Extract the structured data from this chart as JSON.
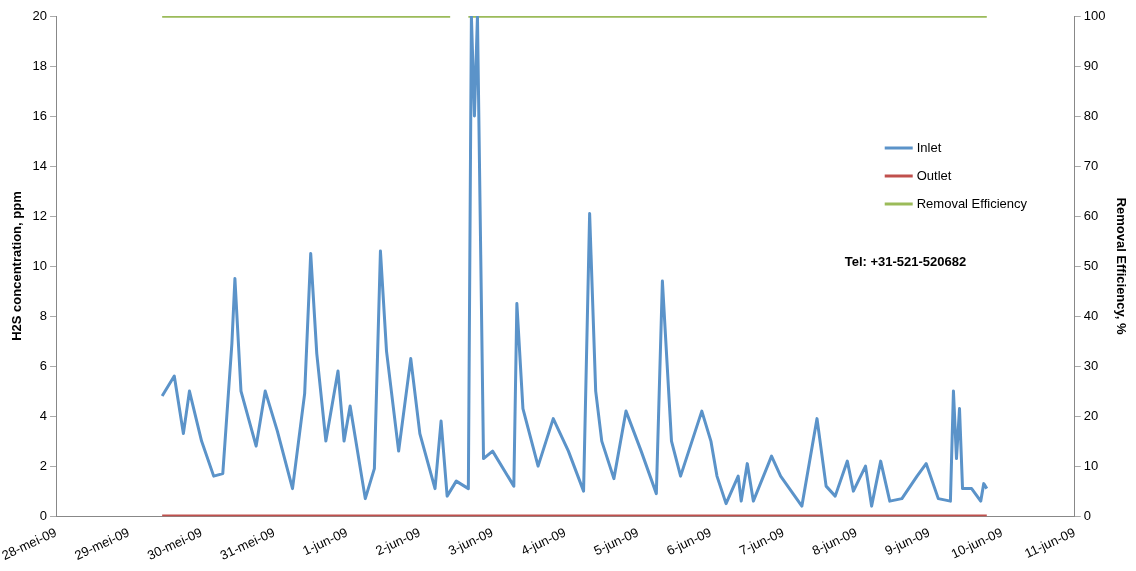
{
  "chart_data": {
    "type": "line",
    "ylabel": "H2S concentration, ppm",
    "y2label": "Removal Efficiency, %",
    "xlim": [
      "--05-28",
      "--06-11"
    ],
    "xticks": [
      {
        "value": "--05-28",
        "label": "28-mei-09"
      },
      {
        "value": "--05-29",
        "label": "29-mei-09"
      },
      {
        "value": "--05-30",
        "label": "30-mei-09"
      },
      {
        "value": "--05-31",
        "label": "31-mei-09"
      },
      {
        "value": "--06-01",
        "label": "1-jun-09"
      },
      {
        "value": "--06-02",
        "label": "2-jun-09"
      },
      {
        "value": "--06-03",
        "label": "3-jun-09"
      },
      {
        "value": "--06-04",
        "label": "4-jun-09"
      },
      {
        "value": "--06-05",
        "label": "5-jun-09"
      },
      {
        "value": "--06-06",
        "label": "6-jun-09"
      },
      {
        "value": "--06-07",
        "label": "7-jun-09"
      },
      {
        "value": "--06-08",
        "label": "8-jun-09"
      },
      {
        "value": "--06-09",
        "label": "9-jun-09"
      },
      {
        "value": "--06-10",
        "label": "10-jun-09"
      },
      {
        "value": "--06-11",
        "label": "11-jun-09"
      }
    ],
    "ylim": [
      0,
      20
    ],
    "yticks": [
      0,
      2,
      4,
      6,
      8,
      10,
      12,
      14,
      16,
      18,
      20
    ],
    "y2lim": [
      0,
      100
    ],
    "y2ticks": [
      0,
      10,
      20,
      30,
      40,
      50,
      60,
      70,
      80,
      90,
      100
    ],
    "grid": false,
    "legend": "top right",
    "marker": "none",
    "line_style": "solid",
    "annotations": [
      "Tel: +31-521-520682"
    ],
    "series": [
      {
        "name": "Inlet",
        "color": "#5b93c9",
        "x": [
          "--05-29T11:00",
          "--05-29T15:00",
          "--05-29T18:00",
          "--05-29T20:00",
          "--05-30T00:00",
          "--05-30T04:00",
          "--05-30T07:00",
          "--05-30T10:00",
          "--05-30T11:00",
          "--05-30T13:00",
          "--05-30T18:00",
          "--05-30T21:00",
          "--05-31T01:00",
          "--05-31T06:00",
          "--05-31T10:00",
          "--05-31T12:00",
          "--05-31T14:00",
          "--05-31T17:00",
          "--05-31T21:00",
          "--05-31T23:00",
          "--06-01T01:00",
          "--06-01T06:00",
          "--06-01T09:00",
          "--06-01T11:00",
          "--06-01T13:00",
          "--06-01T17:00",
          "--06-01T21:00",
          "--06-02T00:00",
          "--06-02T05:00",
          "--06-02T07:00",
          "--06-02T09:00",
          "--06-02T12:00",
          "--06-02T16:00",
          "--06-02T17:00",
          "--06-02T18:00",
          "--06-02T19:00",
          "--06-02T21:00",
          "--06-03T00:00",
          "--06-03T07:00",
          "--06-03T08:00",
          "--06-03T10:00",
          "--06-03T15:00",
          "--06-03T20:00",
          "--06-04T01:00",
          "--06-04T06:00",
          "--06-04T08:00",
          "--06-04T10:00",
          "--06-04T12:00",
          "--06-04T16:00",
          "--06-04T20:00",
          "--06-05T01:00",
          "--06-05T06:00",
          "--06-05T08:00",
          "--06-05T11:00",
          "--06-05T14:00",
          "--06-05T21:00",
          "--06-06T00:00",
          "--06-06T02:00",
          "--06-06T05:00",
          "--06-06T09:00",
          "--06-06T10:00",
          "--06-06T12:00",
          "--06-06T14:00",
          "--06-06T20:00",
          "--06-06T23:00",
          "--06-07T06:00",
          "--06-07T11:00",
          "--06-07T14:00",
          "--06-07T17:00",
          "--06-07T21:00",
          "--06-07T23:00",
          "--06-08T03:00",
          "--06-08T05:00",
          "--06-08T08:00",
          "--06-08T11:00",
          "--06-08T15:00",
          "--06-08T20:00",
          "--06-08T23:00",
          "--06-09T03:00",
          "--06-09T07:00",
          "--06-09T08:00",
          "--06-09T09:00",
          "--06-09T10:00",
          "--06-09T11:00",
          "--06-09T14:00",
          "--06-09T17:00",
          "--06-09T18:00",
          "--06-09T19:00"
        ],
        "values": [
          4.8,
          5.6,
          3.3,
          5.0,
          3.0,
          1.6,
          1.7,
          6.9,
          9.5,
          5.0,
          2.8,
          5.0,
          3.4,
          1.1,
          4.9,
          10.5,
          6.5,
          3.0,
          5.8,
          3.0,
          4.4,
          0.7,
          1.9,
          10.6,
          6.6,
          2.6,
          6.3,
          3.3,
          1.1,
          3.8,
          0.8,
          1.4,
          1.1,
          20,
          16,
          20,
          2.3,
          2.6,
          1.2,
          8.5,
          4.3,
          2.0,
          3.9,
          2.6,
          1.0,
          12.1,
          5.0,
          3.0,
          1.5,
          4.2,
          2.6,
          0.9,
          9.4,
          3.0,
          1.6,
          4.2,
          3.0,
          1.6,
          0.5,
          1.6,
          0.6,
          2.1,
          0.6,
          2.4,
          1.6,
          0.4,
          3.9,
          1.2,
          0.8,
          2.2,
          1.0,
          2.0,
          0.4,
          2.2,
          0.6,
          0.7,
          1.6,
          2.1,
          0.7,
          0.6,
          5.0,
          2.3,
          4.3,
          1.1,
          1.1,
          0.6,
          1.3,
          1.1
        ]
      },
      {
        "name": "Outlet",
        "color": "#c0504d",
        "x": [
          "--05-29T11:00",
          "--06-09T19:00"
        ],
        "values": [
          0,
          0
        ]
      },
      {
        "name": "Removal Efficiency",
        "color": "#9bbb59",
        "axis": "y2",
        "x": [
          "--05-29T11:00",
          "--06-02T10:00",
          "--06-02T13:00",
          "--06-02T16:00",
          "--06-09T19:00"
        ],
        "values": [
          100,
          100,
          null,
          100,
          100
        ]
      }
    ]
  }
}
